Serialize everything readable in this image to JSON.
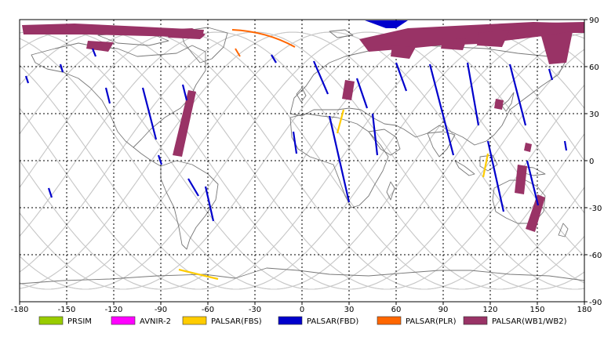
{
  "map": {
    "x_ticks": [
      "-180",
      "-150",
      "-120",
      "-90",
      "-60",
      "-30",
      "0",
      "30",
      "60",
      "90",
      "120",
      "150",
      "180"
    ],
    "y_ticks": [
      "90",
      "60",
      "30",
      "0",
      "-30",
      "-60",
      "-90"
    ],
    "xlim": [
      -180,
      180
    ],
    "ylim": [
      -90,
      90
    ],
    "grid": "dashed"
  },
  "legend": [
    {
      "label": "PRSIM",
      "color": "#99cc00"
    },
    {
      "label": "AVNIR-2",
      "color": "#ff00ff"
    },
    {
      "label": "PALSAR(FBS)",
      "color": "#ffcc00"
    },
    {
      "label": "PALSAR(FBD)",
      "color": "#0000cc"
    },
    {
      "label": "PALSAR(PLR)",
      "color": "#ff6600"
    },
    {
      "label": "PALSAR(WB1/WB2)",
      "color": "#993366"
    }
  ],
  "colors": {
    "coast": "#777777",
    "orbit": "#c8c8c8",
    "grid": "#000000"
  }
}
